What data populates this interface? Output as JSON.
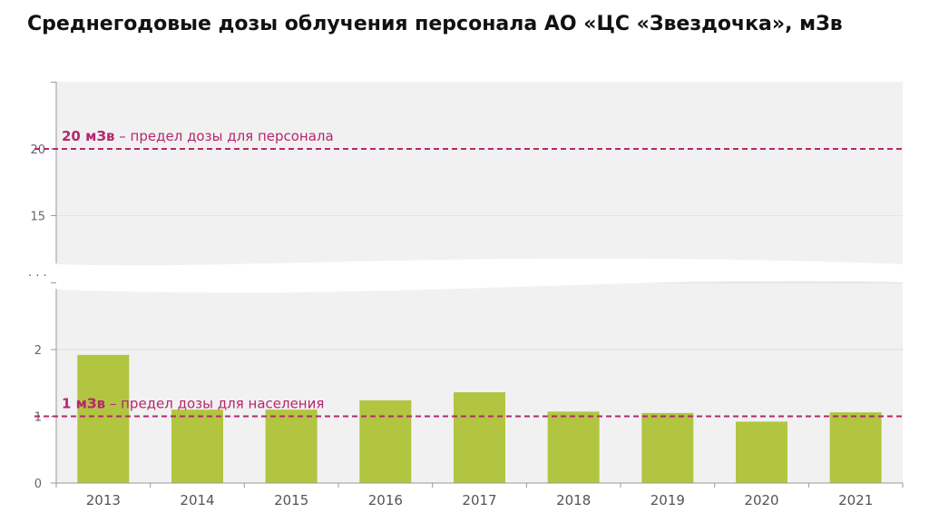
{
  "title": "Среднегодовые дозы облучения персонала АО «ЦС «Звездочка», мЗв",
  "colors": {
    "bar": "#b2c540",
    "reference": "#b5276e",
    "plot_bg": "#f1f1f1",
    "axis": "#999999"
  },
  "chart_data": {
    "type": "bar",
    "categories": [
      "2013",
      "2014",
      "2015",
      "2016",
      "2017",
      "2018",
      "2019",
      "2020",
      "2021"
    ],
    "values": [
      1.92,
      1.1,
      1.1,
      1.24,
      1.36,
      1.07,
      1.05,
      0.92,
      1.06
    ],
    "axis_break": true,
    "break_marker": ". . .",
    "y_ticks_lower": [
      "0",
      "1",
      "2"
    ],
    "y_ticks_upper": [
      "15",
      "20"
    ],
    "ylim_lower": [
      0,
      3
    ],
    "ylim_upper": [
      10,
      25
    ],
    "reference_lines": [
      {
        "value": 20,
        "bold": "20 мЗв",
        "text": " – предел дозы для персонала"
      },
      {
        "value": 1,
        "bold": "1 мЗв",
        "text": " – предел дозы для населения"
      }
    ],
    "grid": true
  }
}
